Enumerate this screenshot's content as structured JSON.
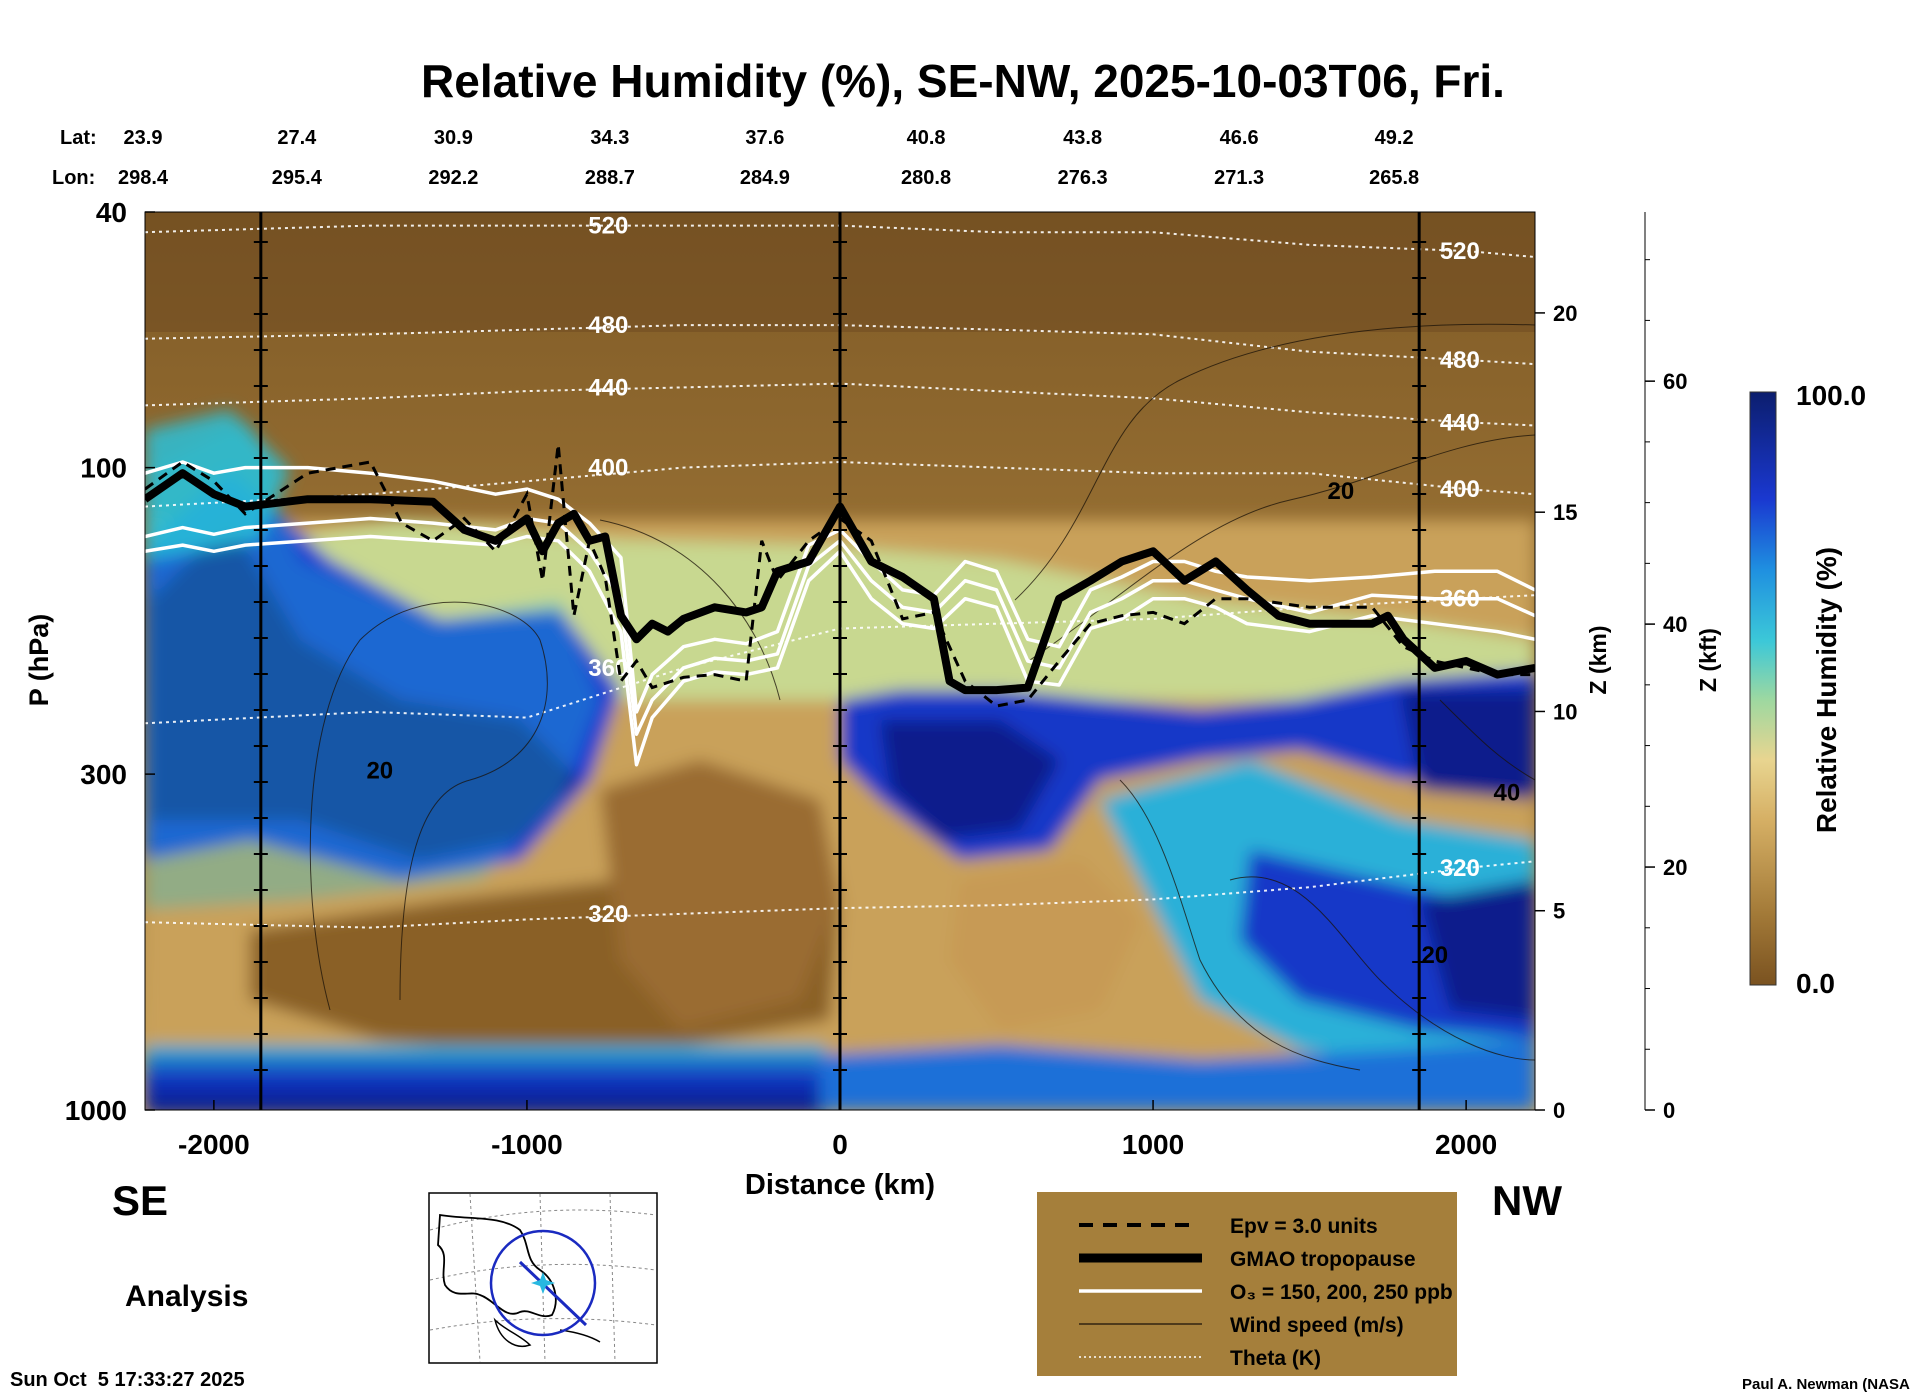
{
  "chart_data": {
    "type": "heatmap",
    "title": "Relative Humidity (%), SE-NW, 2025-10-03T06, Fri.",
    "xlabel": "Distance (km)",
    "ylabel": "P (hPa)",
    "xlim": [
      -2220,
      2220
    ],
    "ylim_hpa": [
      1000,
      40
    ],
    "y_scale": "log",
    "x_ticks": [
      -2000,
      -1000,
      0,
      1000,
      2000
    ],
    "x_tick_labels": [
      "-2000",
      "-1000",
      "0",
      "1000",
      "2000"
    ],
    "y_ticks_hpa": [
      40,
      100,
      300,
      1000
    ],
    "y_tick_labels": [
      "40",
      "100",
      "300",
      "1000"
    ],
    "lat_label": "Lat:",
    "lon_label": "Lon:",
    "waypoints": [
      {
        "lat": "23.9",
        "lon": "298.4",
        "x": -2220
      },
      {
        "lat": "27.4",
        "lon": "295.4",
        "x": -1735
      },
      {
        "lat": "30.9",
        "lon": "292.2",
        "x": -1235
      },
      {
        "lat": "34.3",
        "lon": "288.7",
        "x": -735
      },
      {
        "lat": "37.6",
        "lon": "284.9",
        "x": -240
      },
      {
        "lat": "40.8",
        "lon": "280.8",
        "x": 275
      },
      {
        "lat": "43.8",
        "lon": "276.3",
        "x": 775
      },
      {
        "lat": "46.6",
        "lon": "271.3",
        "x": 1275
      },
      {
        "lat": "49.2",
        "lon": "265.8",
        "x": 1770
      }
    ],
    "vertical_markers_km": [
      -1850,
      0,
      1850
    ],
    "z_km_axis": {
      "label": "Z (km)",
      "ticks": [
        0,
        5,
        10,
        15,
        20
      ],
      "tick_labels": [
        "0",
        "5",
        "10",
        "15",
        "20"
      ]
    },
    "z_kft_axis": {
      "label": "Z (kft)",
      "ticks": [
        0,
        20,
        40,
        60
      ],
      "tick_labels": [
        "0",
        "20",
        "40",
        "60"
      ]
    },
    "colorbar": {
      "label": "Relative Humidity (%)",
      "min": 0.0,
      "max": 100.0,
      "min_label": "0.0",
      "max_label": "100.0"
    },
    "tropopause_hpa": {
      "x": [
        -2220,
        -2100,
        -2000,
        -1900,
        -1700,
        -1500,
        -1300,
        -1200,
        -1100,
        -1000,
        -950,
        -900,
        -850,
        -800,
        -750,
        -700,
        -650,
        -600,
        -550,
        -500,
        -400,
        -300,
        -250,
        -200,
        -100,
        0,
        100,
        200,
        300,
        350,
        400,
        500,
        600,
        700,
        800,
        900,
        1000,
        1100,
        1200,
        1300,
        1400,
        1500,
        1600,
        1700,
        1750,
        1800,
        1900,
        2000,
        2100,
        2220
      ],
      "p": [
        112,
        102,
        110,
        115,
        112,
        112,
        113,
        125,
        130,
        120,
        135,
        122,
        118,
        130,
        128,
        170,
        185,
        175,
        180,
        172,
        165,
        168,
        165,
        145,
        140,
        115,
        140,
        148,
        160,
        215,
        222,
        222,
        220,
        160,
        150,
        140,
        135,
        150,
        140,
        155,
        170,
        175,
        175,
        175,
        170,
        185,
        205,
        200,
        210,
        205
      ]
    },
    "epv_3_hpa": {
      "x": [
        -2220,
        -2100,
        -2000,
        -1900,
        -1700,
        -1500,
        -1400,
        -1300,
        -1200,
        -1100,
        -1000,
        -950,
        -900,
        -850,
        -800,
        -750,
        -700,
        -650,
        -600,
        -500,
        -400,
        -300,
        -250,
        -200,
        -100,
        0,
        100,
        200,
        300,
        400,
        500,
        600,
        700,
        800,
        900,
        1000,
        1100,
        1200,
        1300,
        1500,
        1700,
        1800,
        1900,
        2000,
        2100,
        2220
      ],
      "p": [
        108,
        98,
        105,
        118,
        102,
        98,
        122,
        130,
        120,
        135,
        110,
        150,
        92,
        170,
        130,
        148,
        215,
        200,
        220,
        212,
        210,
        215,
        130,
        150,
        130,
        120,
        130,
        172,
        168,
        215,
        235,
        230,
        200,
        175,
        170,
        168,
        175,
        160,
        160,
        165,
        165,
        190,
        200,
        205,
        210,
        210
      ]
    },
    "ozone_ppb_hpa": [
      {
        "value": 150,
        "x": [
          -2220,
          -2100,
          -2000,
          -1900,
          -1700,
          -1500,
          -1300,
          -1100,
          -1000,
          -900,
          -800,
          -700,
          -650,
          -600,
          -500,
          -400,
          -300,
          -200,
          -100,
          0,
          100,
          200,
          300,
          400,
          500,
          600,
          700,
          800,
          900,
          1000,
          1100,
          1200,
          1300,
          1500,
          1700,
          1900,
          2100,
          2220
        ],
        "p": [
          135,
          132,
          135,
          132,
          130,
          128,
          130,
          132,
          128,
          130,
          145,
          180,
          290,
          245,
          215,
          208,
          210,
          205,
          150,
          135,
          160,
          175,
          178,
          160,
          165,
          215,
          218,
          178,
          172,
          160,
          160,
          165,
          175,
          180,
          170,
          175,
          180,
          185
        ]
      },
      {
        "value": 200,
        "x": [
          -2220,
          -2100,
          -2000,
          -1900,
          -1700,
          -1500,
          -1300,
          -1100,
          -1000,
          -900,
          -800,
          -700,
          -650,
          -600,
          -500,
          -400,
          -300,
          -200,
          -100,
          0,
          100,
          200,
          300,
          400,
          500,
          600,
          700,
          800,
          900,
          1000,
          1100,
          1200,
          1300,
          1500,
          1700,
          1900,
          2100,
          2220
        ],
        "p": [
          128,
          124,
          127,
          124,
          122,
          120,
          122,
          125,
          120,
          122,
          135,
          160,
          260,
          230,
          205,
          198,
          200,
          195,
          142,
          130,
          150,
          165,
          168,
          150,
          155,
          200,
          205,
          168,
          160,
          150,
          150,
          155,
          160,
          168,
          158,
          160,
          160,
          170
        ]
      },
      {
        "value": 250,
        "x": [
          -2220,
          -2100,
          -2000,
          -1900,
          -1700,
          -1500,
          -1300,
          -1100,
          -1000,
          -900,
          -800,
          -700,
          -650,
          -600,
          -500,
          -400,
          -300,
          -200,
          -100,
          0,
          100,
          200,
          300,
          400,
          500,
          600,
          700,
          800,
          900,
          1000,
          1100,
          1200,
          1300,
          1500,
          1700,
          1900,
          2100,
          2220
        ],
        "p": [
          102,
          98,
          102,
          100,
          100,
          102,
          105,
          110,
          108,
          112,
          122,
          138,
          240,
          210,
          190,
          185,
          188,
          180,
          132,
          125,
          140,
          155,
          158,
          140,
          145,
          185,
          190,
          155,
          148,
          140,
          140,
          145,
          148,
          150,
          148,
          145,
          145,
          155
        ]
      }
    ],
    "theta_K_hpa": [
      {
        "value": 320,
        "label": "320",
        "x": [
          -2220,
          -1500,
          -1000,
          -500,
          0,
          500,
          1000,
          1500,
          2000,
          2220
        ],
        "p": [
          510,
          520,
          505,
          495,
          485,
          480,
          470,
          450,
          420,
          410
        ]
      },
      {
        "value": 360,
        "label": "360",
        "x": [
          -2220,
          -1500,
          -1000,
          -500,
          0,
          500,
          1000,
          1500,
          2000,
          2220
        ],
        "p": [
          250,
          240,
          245,
          205,
          178,
          175,
          172,
          165,
          160,
          158
        ]
      },
      {
        "value": 400,
        "label": "400",
        "x": [
          -2220,
          -1500,
          -1000,
          -500,
          0,
          500,
          1000,
          1500,
          2000,
          2220
        ],
        "p": [
          115,
          110,
          105,
          100,
          98,
          100,
          102,
          102,
          108,
          110
        ]
      },
      {
        "value": 440,
        "label": "440",
        "x": [
          -2220,
          -1500,
          -1000,
          -500,
          0,
          500,
          1000,
          1500,
          2000,
          2220
        ],
        "p": [
          80,
          78,
          76,
          75,
          74,
          76,
          78,
          82,
          85,
          86
        ]
      },
      {
        "value": 480,
        "label": "480",
        "x": [
          -2220,
          -1500,
          -1000,
          -500,
          0,
          500,
          1000,
          1500,
          2000,
          2220
        ],
        "p": [
          63,
          62,
          61,
          60,
          60,
          61,
          62,
          66,
          68,
          69
        ]
      },
      {
        "value": 520,
        "label": "520",
        "x": [
          -2220,
          -1500,
          -1000,
          -500,
          0,
          500,
          1000,
          1500,
          2000,
          2220
        ],
        "p": [
          43,
          42,
          42,
          42,
          42,
          43,
          43,
          45,
          46,
          47
        ]
      }
    ],
    "wind_speed_labels": [
      {
        "label": "20",
        "x": -1470,
        "p": 305
      },
      {
        "label": "20",
        "x": 1600,
        "p": 112
      },
      {
        "label": "40",
        "x": 2130,
        "p": 330
      },
      {
        "label": "20",
        "x": 1900,
        "p": 590
      }
    ],
    "legend": [
      {
        "label": "Epv = 3.0 units",
        "style": "dashed"
      },
      {
        "label": "GMAO tropopause",
        "style": "thick"
      },
      {
        "label": "O₃ = 150, 200, 250 ppb",
        "style": "white"
      },
      {
        "label": "Wind speed (m/s)",
        "style": "thin"
      },
      {
        "label": "Theta (K)",
        "style": "dotted"
      }
    ]
  },
  "labels": {
    "left_direction": "SE",
    "right_direction": "NW",
    "analysis": "Analysis",
    "timestamp": "Sun Oct  5 17:33:27 2025",
    "credit": "Paul A. Newman (NASA"
  },
  "colors": {
    "brown_dark": "#6e4a1c",
    "tan": "#c49a55",
    "legend_bg": "#a57f3b",
    "blue_dark": "#0a1a7a",
    "cyan": "#28b8d0"
  }
}
